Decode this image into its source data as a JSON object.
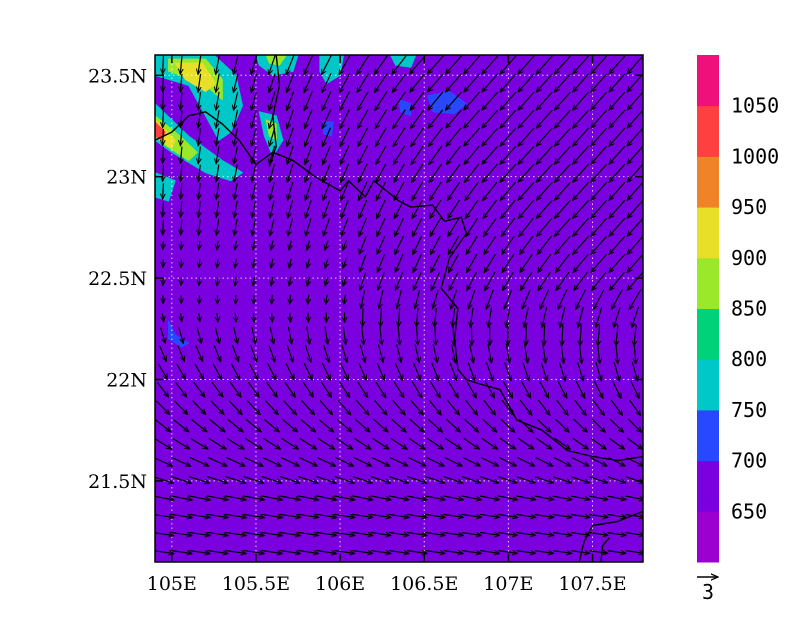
{
  "chart_data": {
    "type": "heatmap",
    "title": "",
    "xlim": [
      104.9,
      107.8
    ],
    "ylim": [
      21.1,
      23.6
    ],
    "x_ticks": [
      {
        "value": 105.0,
        "label": "105E"
      },
      {
        "value": 105.5,
        "label": "105.5E"
      },
      {
        "value": 106.0,
        "label": "106E"
      },
      {
        "value": 106.5,
        "label": "106.5E"
      },
      {
        "value": 107.0,
        "label": "107E"
      },
      {
        "value": 107.5,
        "label": "107.5E"
      }
    ],
    "y_ticks": [
      {
        "value": 23.5,
        "label": "23.5N"
      },
      {
        "value": 23.0,
        "label": "23N"
      },
      {
        "value": 22.5,
        "label": "22.5N"
      },
      {
        "value": 22.0,
        "label": "22N"
      },
      {
        "value": 21.5,
        "label": "21.5N"
      }
    ],
    "grid": true,
    "background_fill_color": "#7b00e0",
    "colorbar": {
      "placement": "right",
      "labels": [
        "650",
        "700",
        "750",
        "800",
        "850",
        "900",
        "950",
        "1000",
        "1050"
      ],
      "colors": [
        "#9c00d0",
        "#7b00e0",
        "#2848ff",
        "#00c8c8",
        "#00d27a",
        "#9be82a",
        "#e8e028",
        "#f08228",
        "#ff4040",
        "#f0107c"
      ]
    },
    "vector_reference": {
      "label": "3"
    },
    "contour_patches": [
      {
        "fill": "#00c8c8",
        "points": [
          [
            104.9,
            23.6
          ],
          [
            105.25,
            23.6
          ],
          [
            105.38,
            23.5
          ],
          [
            105.42,
            23.35
          ],
          [
            105.35,
            23.22
          ],
          [
            105.28,
            23.18
          ],
          [
            105.2,
            23.3
          ],
          [
            105.1,
            23.45
          ],
          [
            104.9,
            23.5
          ]
        ]
      },
      {
        "fill": "#9be82a",
        "points": [
          [
            104.98,
            23.58
          ],
          [
            105.2,
            23.58
          ],
          [
            105.3,
            23.48
          ],
          [
            105.3,
            23.38
          ],
          [
            105.2,
            23.45
          ],
          [
            105.05,
            23.5
          ],
          [
            104.98,
            23.52
          ]
        ]
      },
      {
        "fill": "#e8e028",
        "points": [
          [
            105.02,
            23.56
          ],
          [
            105.18,
            23.56
          ],
          [
            105.26,
            23.46
          ],
          [
            105.2,
            23.42
          ],
          [
            105.08,
            23.48
          ]
        ]
      },
      {
        "fill": "#00c8c8",
        "points": [
          [
            104.9,
            23.36
          ],
          [
            105.1,
            23.2
          ],
          [
            105.3,
            23.08
          ],
          [
            105.42,
            23.02
          ],
          [
            105.35,
            22.98
          ],
          [
            105.2,
            23.02
          ],
          [
            105.0,
            23.12
          ],
          [
            104.9,
            23.18
          ]
        ]
      },
      {
        "fill": "#9be82a",
        "points": [
          [
            104.9,
            23.3
          ],
          [
            105.05,
            23.2
          ],
          [
            105.15,
            23.12
          ],
          [
            105.1,
            23.08
          ],
          [
            104.95,
            23.16
          ],
          [
            104.9,
            23.2
          ]
        ]
      },
      {
        "fill": "#e8e028",
        "points": [
          [
            104.9,
            23.28
          ],
          [
            105.02,
            23.18
          ],
          [
            105.0,
            23.14
          ],
          [
            104.9,
            23.2
          ]
        ]
      },
      {
        "fill": "#ff4040",
        "points": [
          [
            104.9,
            23.27
          ],
          [
            104.96,
            23.22
          ],
          [
            104.94,
            23.18
          ],
          [
            104.9,
            23.2
          ]
        ]
      },
      {
        "fill": "#00c8c8",
        "points": [
          [
            104.9,
            23.02
          ],
          [
            105.02,
            22.98
          ],
          [
            104.98,
            22.88
          ],
          [
            104.9,
            22.9
          ]
        ]
      },
      {
        "fill": "#00c8c8",
        "points": [
          [
            105.52,
            23.32
          ],
          [
            105.62,
            23.3
          ],
          [
            105.66,
            23.18
          ],
          [
            105.6,
            23.1
          ],
          [
            105.55,
            23.2
          ]
        ]
      },
      {
        "fill": "#9be82a",
        "points": [
          [
            105.56,
            23.28
          ],
          [
            105.62,
            23.26
          ],
          [
            105.62,
            23.18
          ],
          [
            105.58,
            23.2
          ]
        ]
      },
      {
        "fill": "#00c8c8",
        "points": [
          [
            105.5,
            23.6
          ],
          [
            105.75,
            23.6
          ],
          [
            105.72,
            23.52
          ],
          [
            105.6,
            23.5
          ],
          [
            105.52,
            23.55
          ]
        ]
      },
      {
        "fill": "#9be82a",
        "points": [
          [
            105.56,
            23.6
          ],
          [
            105.68,
            23.6
          ],
          [
            105.64,
            23.55
          ],
          [
            105.58,
            23.56
          ]
        ]
      },
      {
        "fill": "#00c8c8",
        "points": [
          [
            105.88,
            23.6
          ],
          [
            106.02,
            23.6
          ],
          [
            106.0,
            23.5
          ],
          [
            105.92,
            23.46
          ],
          [
            105.88,
            23.52
          ]
        ]
      },
      {
        "fill": "#00c8c8",
        "points": [
          [
            106.3,
            23.6
          ],
          [
            106.45,
            23.6
          ],
          [
            106.42,
            23.54
          ],
          [
            106.33,
            23.55
          ]
        ]
      },
      {
        "fill": "#2848ff",
        "points": [
          [
            106.52,
            23.4
          ],
          [
            106.65,
            23.42
          ],
          [
            106.75,
            23.36
          ],
          [
            106.68,
            23.31
          ],
          [
            106.55,
            23.32
          ]
        ]
      },
      {
        "fill": "#2848ff",
        "points": [
          [
            106.35,
            23.38
          ],
          [
            106.42,
            23.36
          ],
          [
            106.42,
            23.3
          ],
          [
            106.36,
            23.32
          ]
        ]
      },
      {
        "fill": "#2848ff",
        "points": [
          [
            105.9,
            23.27
          ],
          [
            105.96,
            23.27
          ],
          [
            105.95,
            23.2
          ],
          [
            105.9,
            23.21
          ]
        ]
      },
      {
        "fill": "#2848ff",
        "points": [
          [
            104.98,
            22.29
          ],
          [
            105.02,
            22.22
          ],
          [
            105.1,
            22.18
          ],
          [
            105.06,
            22.16
          ],
          [
            104.98,
            22.2
          ]
        ]
      }
    ],
    "boundary_lines": [
      [
        [
          104.9,
          23.18
        ],
        [
          105.0,
          23.22
        ],
        [
          105.1,
          23.3
        ],
        [
          105.2,
          23.32
        ],
        [
          105.3,
          23.26
        ],
        [
          105.4,
          23.18
        ],
        [
          105.5,
          23.06
        ],
        [
          105.6,
          23.12
        ],
        [
          105.72,
          23.08
        ],
        [
          105.85,
          23.0
        ],
        [
          106.0,
          22.93
        ],
        [
          106.05,
          22.98
        ],
        [
          106.15,
          22.9
        ],
        [
          106.2,
          22.98
        ],
        [
          106.35,
          22.88
        ],
        [
          106.42,
          22.85
        ],
        [
          106.55,
          22.86
        ],
        [
          106.62,
          22.78
        ],
        [
          106.72,
          22.8
        ],
        [
          106.75,
          22.72
        ],
        [
          106.65,
          22.6
        ],
        [
          106.6,
          22.45
        ],
        [
          106.7,
          22.35
        ],
        [
          106.68,
          22.2
        ],
        [
          106.7,
          22.05
        ],
        [
          106.75,
          22.0
        ],
        [
          106.82,
          21.98
        ],
        [
          106.95,
          21.95
        ],
        [
          107.05,
          21.8
        ],
        [
          107.2,
          21.75
        ],
        [
          107.35,
          21.65
        ],
        [
          107.5,
          21.62
        ],
        [
          107.65,
          21.6
        ],
        [
          107.8,
          21.62
        ]
      ],
      [
        [
          105.62,
          23.6
        ],
        [
          105.64,
          23.45
        ],
        [
          105.6,
          23.3
        ],
        [
          105.62,
          23.15
        ],
        [
          105.58,
          23.05
        ]
      ],
      [
        [
          107.8,
          21.35
        ],
        [
          107.65,
          21.3
        ],
        [
          107.5,
          21.28
        ],
        [
          107.45,
          21.2
        ],
        [
          107.42,
          21.1
        ]
      ],
      [
        [
          107.55,
          21.1
        ],
        [
          107.56,
          21.18
        ],
        [
          107.6,
          21.22
        ]
      ]
    ]
  }
}
